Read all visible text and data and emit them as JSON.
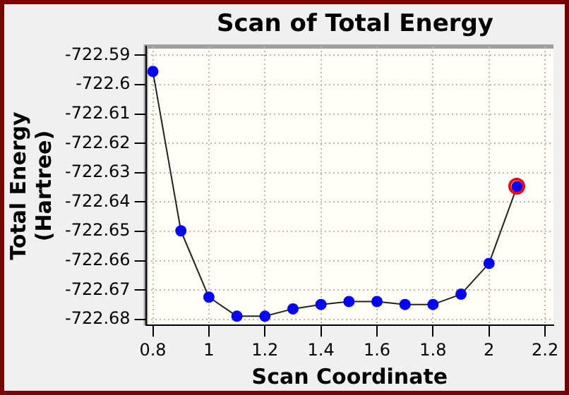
{
  "chart_data": {
    "type": "line",
    "title": "Scan of Total Energy",
    "xlabel": "Scan Coordinate",
    "ylabel": "Total Energy (Hartree)",
    "x": [
      0.8,
      0.9,
      1.0,
      1.1,
      1.2,
      1.3,
      1.4,
      1.5,
      1.6,
      1.7,
      1.8,
      1.9,
      2.0,
      2.1
    ],
    "series": [
      {
        "color": "#0000ff",
        "values": [
          -722.5955,
          -722.6498,
          -722.6724,
          -722.6789,
          -722.6789,
          -722.6764,
          -722.6749,
          -722.6739,
          -722.6739,
          -722.6749,
          -722.6749,
          -722.6714,
          -722.6609,
          -722.6347
        ]
      }
    ],
    "xlim": [
      0.775,
      2.23
    ],
    "xticks": [
      0.8,
      1,
      1.2,
      1.4,
      1.6,
      1.8,
      2,
      2.2
    ],
    "ylim": [
      -722.682,
      -722.587
    ],
    "yticks": [
      -722.68,
      -722.67,
      -722.66,
      -722.65,
      -722.64,
      -722.63,
      -722.62,
      -722.61,
      -722.6,
      -722.59
    ],
    "grid": true,
    "legend": false,
    "marker": "circle",
    "line_style": "solid"
  }
}
